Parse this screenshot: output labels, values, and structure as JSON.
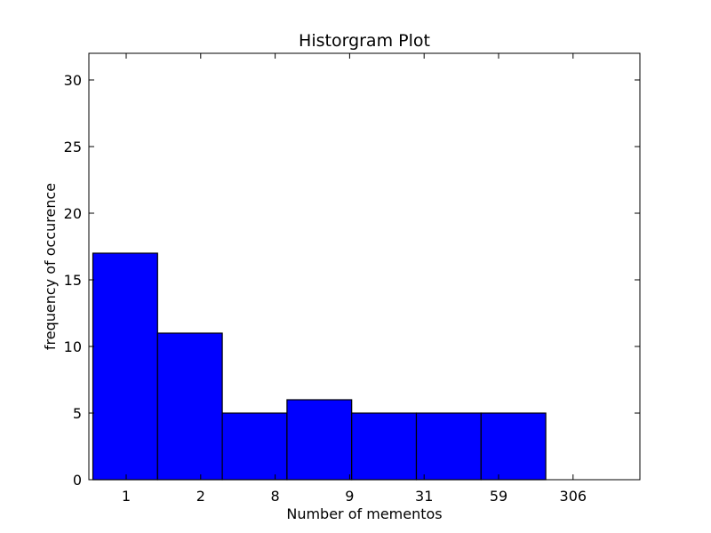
{
  "chart_data": {
    "type": "bar",
    "title": "Historgram Plot",
    "xlabel": "Number of mementos",
    "ylabel": "frequency of occurence",
    "categories": [
      "1",
      "2",
      "8",
      "9",
      "31",
      "59",
      "306"
    ],
    "values": [
      17,
      11,
      5,
      6,
      5,
      5,
      5
    ],
    "ylim": [
      0,
      32
    ],
    "yticks": [
      0,
      5,
      10,
      15,
      20,
      25,
      30
    ],
    "bar_color": "#0000ff",
    "edge_color": "#000000",
    "grid": false,
    "legend": "none"
  }
}
